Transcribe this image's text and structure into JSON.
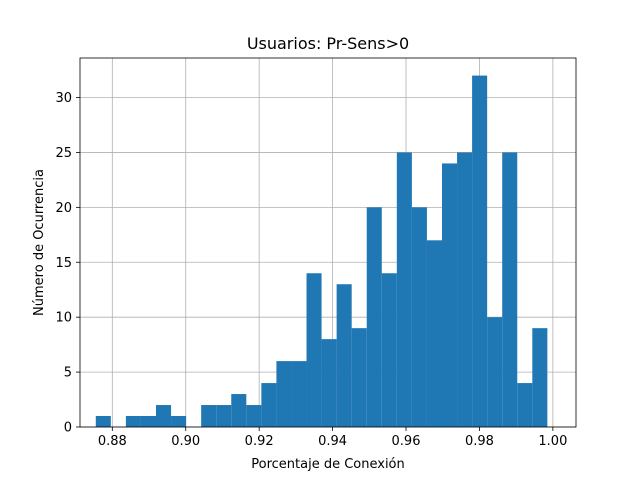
{
  "chart_data": {
    "type": "bar",
    "title": "Usuarios: Pr-Sens>0",
    "xlabel": "Porcentaje de Conexión",
    "ylabel": "Número de Ocurrencia",
    "xlim": [
      0.8712,
      1.0063
    ],
    "ylim": [
      0,
      33.6
    ],
    "grid": true,
    "bar_color": "#1f77b4",
    "x_ticks": [
      0.88,
      0.9,
      0.92,
      0.94,
      0.96,
      0.98,
      1.0
    ],
    "x_tick_labels": [
      "0.88",
      "0.90",
      "0.92",
      "0.94",
      "0.96",
      "0.98",
      "1.00"
    ],
    "y_ticks": [
      0,
      5,
      10,
      15,
      20,
      25,
      30
    ],
    "y_tick_labels": [
      "0",
      "5",
      "10",
      "15",
      "20",
      "25",
      "30"
    ],
    "bin_start": 0.8755,
    "bin_width": 0.0041,
    "counts": [
      1,
      0,
      1,
      1,
      2,
      1,
      0,
      2,
      2,
      3,
      2,
      4,
      6,
      6,
      14,
      8,
      13,
      9,
      20,
      14,
      25,
      20,
      17,
      24,
      25,
      32,
      10,
      25,
      4,
      9
    ]
  }
}
